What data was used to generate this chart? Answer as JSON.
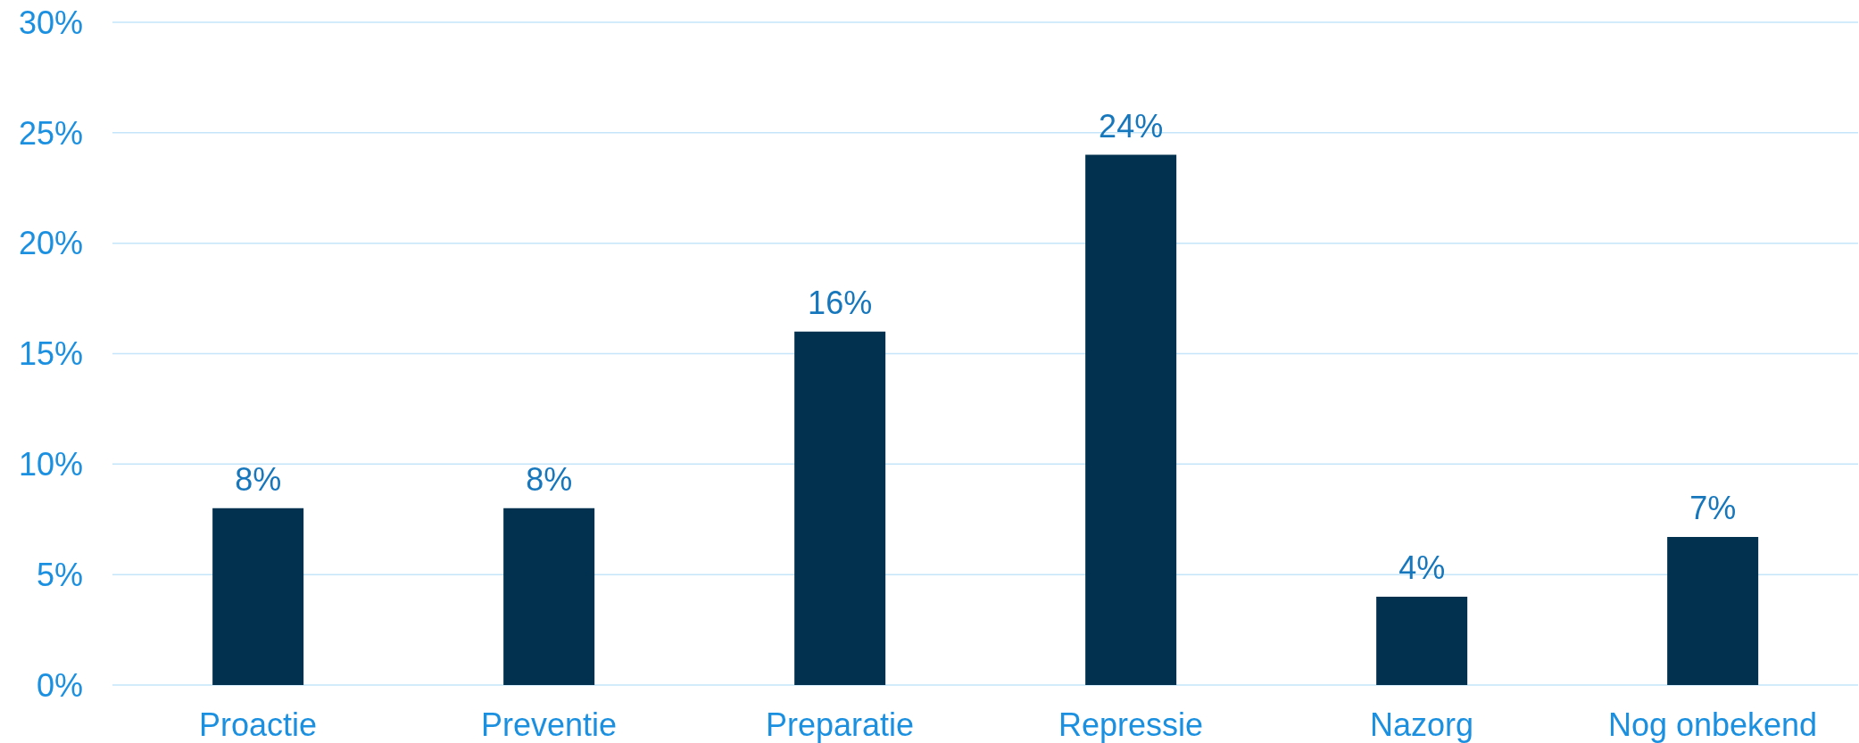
{
  "chart_data": {
    "type": "bar",
    "categories": [
      "Proactie",
      "Preventie",
      "Preparatie",
      "Repressie",
      "Nazorg",
      "Nog onbekend"
    ],
    "values": [
      8,
      8,
      16,
      24,
      4,
      6.7
    ],
    "value_labels": [
      "8%",
      "8%",
      "16%",
      "24%",
      "4%",
      "7%"
    ],
    "color": "#02314f",
    "ylim": [
      0,
      30
    ],
    "yticks": [
      {
        "value": 0,
        "label": "0%"
      },
      {
        "value": 5,
        "label": "5%"
      },
      {
        "value": 10,
        "label": "10%"
      },
      {
        "value": 15,
        "label": "15%"
      },
      {
        "value": 20,
        "label": "20%"
      },
      {
        "value": 25,
        "label": "25%"
      },
      {
        "value": 30,
        "label": "30%"
      }
    ],
    "grid": "y"
  }
}
